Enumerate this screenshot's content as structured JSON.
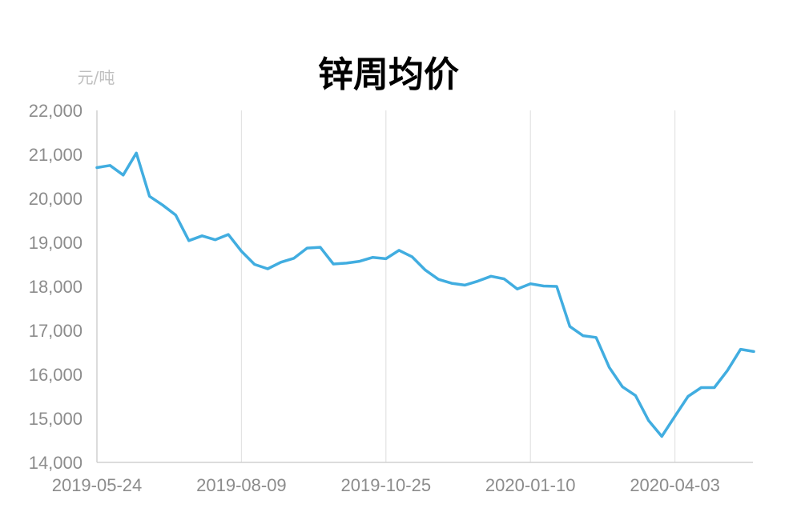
{
  "chart_data": {
    "type": "line",
    "title": "锌周均价",
    "ylabel": "元/吨",
    "xlabel": "",
    "ylim": [
      14000,
      22000
    ],
    "yticks": [
      14000,
      15000,
      16000,
      17000,
      18000,
      19000,
      20000,
      21000,
      22000
    ],
    "ytick_labels": [
      "14,000",
      "15,000",
      "16,000",
      "17,000",
      "18,000",
      "19,000",
      "20,000",
      "21,000",
      "22,000"
    ],
    "xtick_labels": [
      "2019-05-24",
      "2019-08-09",
      "2019-10-25",
      "2020-01-10",
      "2020-04-03"
    ],
    "xtick_indices": [
      0,
      11,
      22,
      33,
      44
    ],
    "grid": "vertical",
    "color": "#41ade0",
    "series": [
      {
        "values": [
          20700,
          20750,
          20530,
          21030,
          20050,
          19850,
          19620,
          19040,
          19150,
          19060,
          19180,
          18800,
          18500,
          18400,
          18550,
          18640,
          18870,
          18890,
          18510,
          18530,
          18570,
          18660,
          18630,
          18820,
          18670,
          18370,
          18160,
          18070,
          18030,
          18120,
          18230,
          18170,
          17940,
          18060,
          18010,
          18000,
          17090,
          16880,
          16840,
          16160,
          15720,
          15520,
          14950,
          14590,
          15050,
          15500,
          15700,
          15700,
          16090,
          16570,
          16520
        ]
      }
    ]
  }
}
